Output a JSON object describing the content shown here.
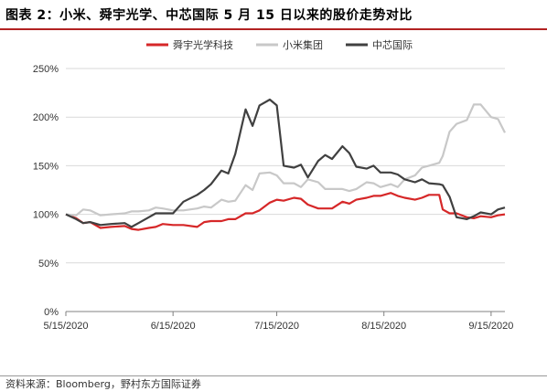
{
  "figure": {
    "title": "图表 2：小米、舜宇光学、中芯国际 5 月 15 日以来的股价走势对比",
    "source": "资料来源：Bloomberg，野村东方国际证券"
  },
  "colors": {
    "title_rule": "#b22222",
    "grid": "#d9d9d9",
    "axis": "#808080"
  },
  "chart_data": {
    "type": "line",
    "title": "",
    "xlabel": "",
    "ylabel": "",
    "x_tick_labels": [
      "5/15/2020",
      "6/15/2020",
      "7/15/2020",
      "8/15/2020",
      "9/15/2020"
    ],
    "y_tick_labels": [
      "0%",
      "50%",
      "100%",
      "150%",
      "200%",
      "250%"
    ],
    "ylim": [
      0,
      250
    ],
    "xlim": [
      "2020-05-15",
      "2020-09-19"
    ],
    "grid": true,
    "legend_position": "top-center",
    "series": [
      {
        "name": "舜宇光学科技",
        "color": "#d62728",
        "points": [
          [
            "2020-05-15",
            100
          ],
          [
            "2020-05-18",
            96
          ],
          [
            "2020-05-20",
            91
          ],
          [
            "2020-05-22",
            92
          ],
          [
            "2020-05-25",
            86
          ],
          [
            "2020-05-28",
            87
          ],
          [
            "2020-06-01",
            88
          ],
          [
            "2020-06-03",
            85
          ],
          [
            "2020-06-05",
            84
          ],
          [
            "2020-06-08",
            86
          ],
          [
            "2020-06-10",
            87
          ],
          [
            "2020-06-12",
            90
          ],
          [
            "2020-06-15",
            89
          ],
          [
            "2020-06-18",
            89
          ],
          [
            "2020-06-22",
            87
          ],
          [
            "2020-06-24",
            92
          ],
          [
            "2020-06-26",
            93
          ],
          [
            "2020-06-29",
            93
          ],
          [
            "2020-07-01",
            95
          ],
          [
            "2020-07-03",
            95
          ],
          [
            "2020-07-06",
            101
          ],
          [
            "2020-07-08",
            101
          ],
          [
            "2020-07-10",
            104
          ],
          [
            "2020-07-13",
            112
          ],
          [
            "2020-07-15",
            115
          ],
          [
            "2020-07-17",
            114
          ],
          [
            "2020-07-20",
            117
          ],
          [
            "2020-07-22",
            116
          ],
          [
            "2020-07-24",
            110
          ],
          [
            "2020-07-27",
            106
          ],
          [
            "2020-07-29",
            106
          ],
          [
            "2020-07-31",
            106
          ],
          [
            "2020-08-03",
            113
          ],
          [
            "2020-08-05",
            111
          ],
          [
            "2020-08-07",
            115
          ],
          [
            "2020-08-10",
            117
          ],
          [
            "2020-08-12",
            119
          ],
          [
            "2020-08-14",
            119
          ],
          [
            "2020-08-17",
            122
          ],
          [
            "2020-08-19",
            119
          ],
          [
            "2020-08-21",
            117
          ],
          [
            "2020-08-24",
            115
          ],
          [
            "2020-08-26",
            117
          ],
          [
            "2020-08-28",
            120
          ],
          [
            "2020-08-31",
            120
          ],
          [
            "2020-09-01",
            105
          ],
          [
            "2020-09-03",
            101
          ],
          [
            "2020-09-05",
            101
          ],
          [
            "2020-09-08",
            97
          ],
          [
            "2020-09-10",
            96
          ],
          [
            "2020-09-12",
            98
          ],
          [
            "2020-09-15",
            97
          ],
          [
            "2020-09-17",
            99
          ],
          [
            "2020-09-19",
            100
          ]
        ]
      },
      {
        "name": "小米集团",
        "color": "#c8c8c8",
        "points": [
          [
            "2020-05-15",
            100
          ],
          [
            "2020-05-18",
            99
          ],
          [
            "2020-05-20",
            105
          ],
          [
            "2020-05-22",
            104
          ],
          [
            "2020-05-25",
            99
          ],
          [
            "2020-05-28",
            100
          ],
          [
            "2020-06-01",
            101
          ],
          [
            "2020-06-03",
            103
          ],
          [
            "2020-06-05",
            103
          ],
          [
            "2020-06-08",
            104
          ],
          [
            "2020-06-10",
            107
          ],
          [
            "2020-06-12",
            106
          ],
          [
            "2020-06-15",
            104
          ],
          [
            "2020-06-18",
            104
          ],
          [
            "2020-06-22",
            106
          ],
          [
            "2020-06-24",
            108
          ],
          [
            "2020-06-26",
            107
          ],
          [
            "2020-06-29",
            115
          ],
          [
            "2020-07-01",
            113
          ],
          [
            "2020-07-03",
            114
          ],
          [
            "2020-07-06",
            130
          ],
          [
            "2020-07-08",
            125
          ],
          [
            "2020-07-10",
            142
          ],
          [
            "2020-07-13",
            143
          ],
          [
            "2020-07-15",
            140
          ],
          [
            "2020-07-17",
            132
          ],
          [
            "2020-07-20",
            132
          ],
          [
            "2020-07-22",
            128
          ],
          [
            "2020-07-24",
            136
          ],
          [
            "2020-07-27",
            133
          ],
          [
            "2020-07-29",
            126
          ],
          [
            "2020-07-31",
            126
          ],
          [
            "2020-08-03",
            126
          ],
          [
            "2020-08-05",
            124
          ],
          [
            "2020-08-07",
            126
          ],
          [
            "2020-08-10",
            133
          ],
          [
            "2020-08-12",
            132
          ],
          [
            "2020-08-14",
            128
          ],
          [
            "2020-08-17",
            131
          ],
          [
            "2020-08-19",
            128
          ],
          [
            "2020-08-21",
            136
          ],
          [
            "2020-08-24",
            140
          ],
          [
            "2020-08-26",
            148
          ],
          [
            "2020-08-28",
            150
          ],
          [
            "2020-08-31",
            153
          ],
          [
            "2020-09-01",
            160
          ],
          [
            "2020-09-03",
            185
          ],
          [
            "2020-09-05",
            193
          ],
          [
            "2020-09-08",
            197
          ],
          [
            "2020-09-10",
            213
          ],
          [
            "2020-09-12",
            213
          ],
          [
            "2020-09-15",
            200
          ],
          [
            "2020-09-17",
            198
          ],
          [
            "2020-09-19",
            184
          ]
        ]
      },
      {
        "name": "中芯国际",
        "color": "#404040",
        "points": [
          [
            "2020-05-15",
            100
          ],
          [
            "2020-05-18",
            95
          ],
          [
            "2020-05-20",
            91
          ],
          [
            "2020-05-22",
            92
          ],
          [
            "2020-05-25",
            89
          ],
          [
            "2020-05-28",
            90
          ],
          [
            "2020-06-01",
            91
          ],
          [
            "2020-06-03",
            87
          ],
          [
            "2020-06-05",
            91
          ],
          [
            "2020-06-08",
            97
          ],
          [
            "2020-06-10",
            101
          ],
          [
            "2020-06-12",
            101
          ],
          [
            "2020-06-15",
            101
          ],
          [
            "2020-06-18",
            113
          ],
          [
            "2020-06-22",
            120
          ],
          [
            "2020-06-24",
            125
          ],
          [
            "2020-06-26",
            131
          ],
          [
            "2020-06-29",
            145
          ],
          [
            "2020-07-01",
            142
          ],
          [
            "2020-07-03",
            162
          ],
          [
            "2020-07-06",
            208
          ],
          [
            "2020-07-08",
            191
          ],
          [
            "2020-07-10",
            212
          ],
          [
            "2020-07-13",
            218
          ],
          [
            "2020-07-15",
            212
          ],
          [
            "2020-07-17",
            150
          ],
          [
            "2020-07-20",
            148
          ],
          [
            "2020-07-22",
            151
          ],
          [
            "2020-07-24",
            138
          ],
          [
            "2020-07-27",
            155
          ],
          [
            "2020-07-29",
            161
          ],
          [
            "2020-07-31",
            157
          ],
          [
            "2020-08-03",
            170
          ],
          [
            "2020-08-05",
            163
          ],
          [
            "2020-08-07",
            149
          ],
          [
            "2020-08-10",
            147
          ],
          [
            "2020-08-12",
            150
          ],
          [
            "2020-08-14",
            143
          ],
          [
            "2020-08-17",
            143
          ],
          [
            "2020-08-19",
            141
          ],
          [
            "2020-08-21",
            136
          ],
          [
            "2020-08-24",
            133
          ],
          [
            "2020-08-26",
            136
          ],
          [
            "2020-08-28",
            132
          ],
          [
            "2020-08-31",
            131
          ],
          [
            "2020-09-01",
            130
          ],
          [
            "2020-09-03",
            118
          ],
          [
            "2020-09-05",
            97
          ],
          [
            "2020-09-08",
            95
          ],
          [
            "2020-09-10",
            98
          ],
          [
            "2020-09-12",
            102
          ],
          [
            "2020-09-15",
            100
          ],
          [
            "2020-09-17",
            105
          ],
          [
            "2020-09-19",
            107
          ]
        ]
      }
    ]
  }
}
